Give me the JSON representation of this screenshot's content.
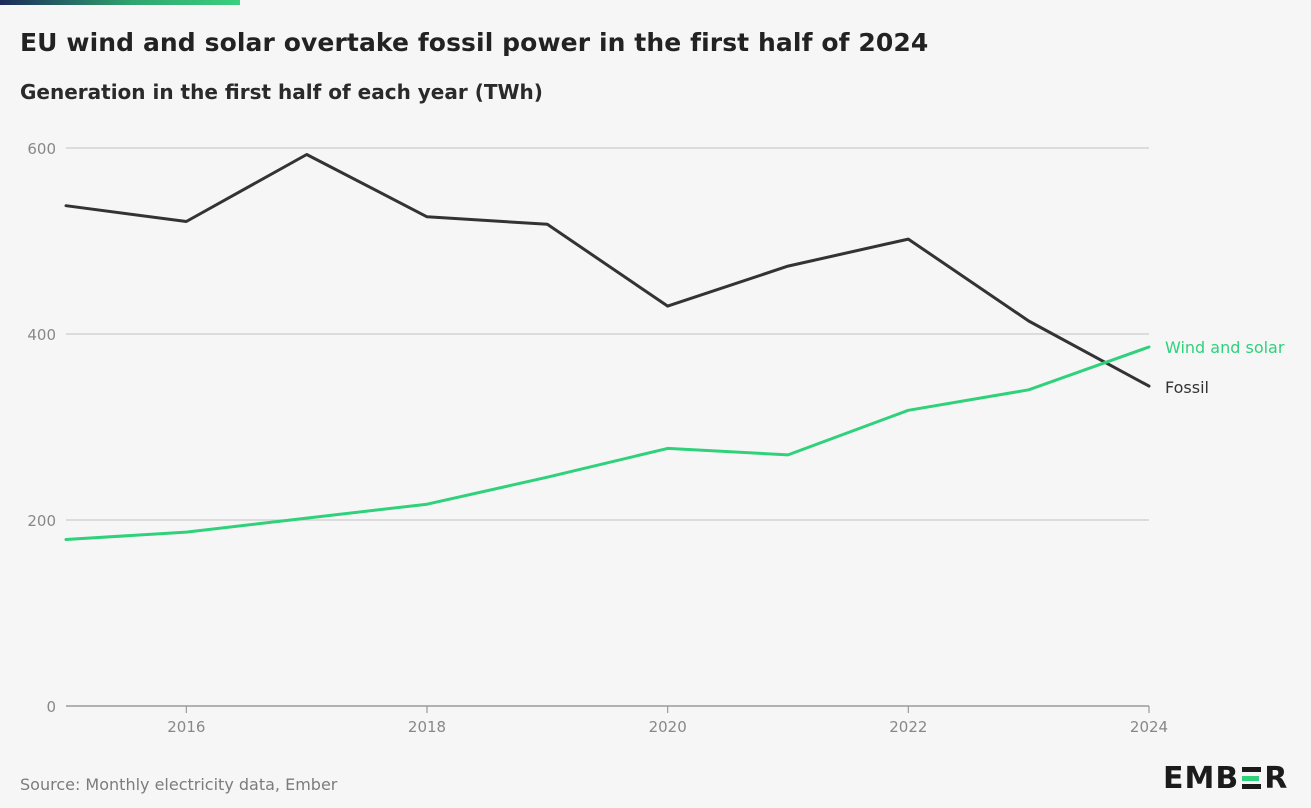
{
  "title": "EU wind and solar overtake fossil power in the first half of 2024",
  "subtitle": "Generation in the first half of each year (TWh)",
  "source": "Source: Monthly electricity data, Ember",
  "logo": {
    "text_left": "EMB",
    "text_right": "R",
    "icon": "ember-logo"
  },
  "colors": {
    "fossil": "#333333",
    "wind_solar": "#2fd17b",
    "grid": "#cccccc",
    "tick": "#888888"
  },
  "chart_data": {
    "type": "line",
    "title": "EU wind and solar overtake fossil power in the first half of 2024",
    "subtitle": "Generation in the first half of each year (TWh)",
    "x": [
      2015,
      2016,
      2017,
      2018,
      2019,
      2020,
      2021,
      2022,
      2023,
      2024
    ],
    "xlim": [
      2015,
      2024
    ],
    "ylim": [
      0,
      600
    ],
    "xticks": [
      2016,
      2018,
      2020,
      2022,
      2024
    ],
    "yticks": [
      0,
      200,
      400,
      600
    ],
    "grid": true,
    "legend": "direct labels at line ends (right)",
    "series": [
      {
        "name": "Fossil",
        "values": [
          538,
          521,
          593,
          526,
          518,
          430,
          473,
          502,
          414,
          344
        ]
      },
      {
        "name": "Wind and solar",
        "values": [
          179,
          187,
          202,
          217,
          246,
          277,
          270,
          318,
          340,
          386
        ]
      }
    ]
  }
}
